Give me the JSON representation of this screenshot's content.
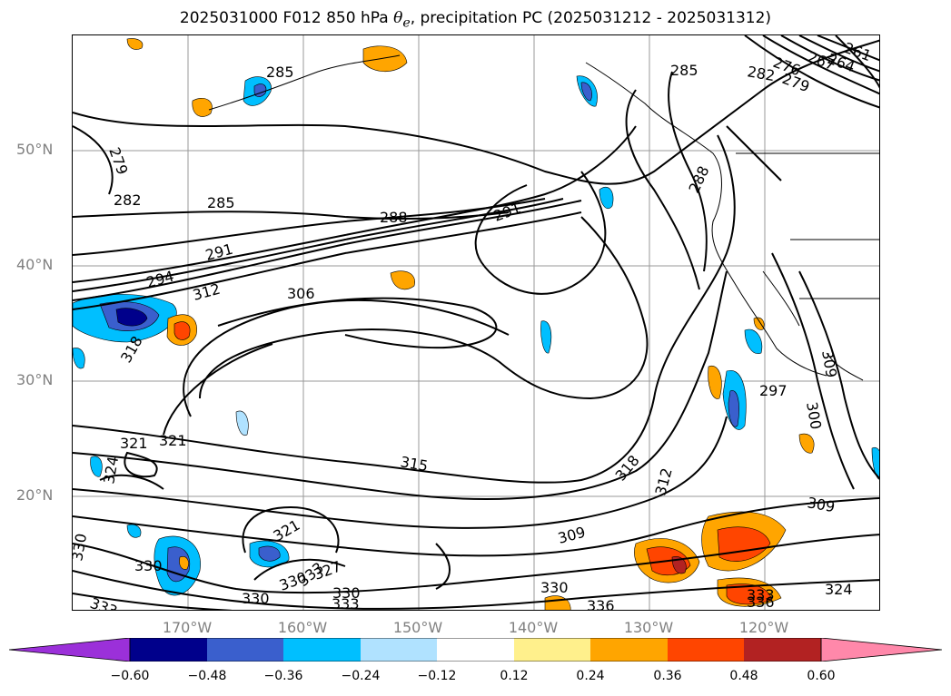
{
  "title": {
    "prefix": "2025031000 F012 850 hPa ",
    "symbol": "θ",
    "subscript": "e",
    "suffix": ", precipitation PC (2025031212 - 2025031312)"
  },
  "lat_labels": [
    "50°N",
    "40°N",
    "30°N",
    "20°N"
  ],
  "lon_labels": [
    "170°W",
    "160°W",
    "150°W",
    "140°W",
    "130°W",
    "120°W"
  ],
  "contour_labels": [
    "285",
    "285",
    "279",
    "282",
    "285",
    "288",
    "291",
    "291",
    "294",
    "312",
    "306",
    "318",
    "315",
    "321",
    "321",
    "324",
    "330",
    "330",
    "321",
    "327",
    "330",
    "333",
    "333",
    "330",
    "330",
    "309",
    "318",
    "312",
    "309",
    "324",
    "333",
    "336",
    "297",
    "300",
    "309",
    "330",
    "333",
    "336",
    "282",
    "279",
    "267",
    "264",
    "261",
    "288",
    "276"
  ],
  "colorbar": {
    "ticks": [
      "−0.60",
      "−0.48",
      "−0.36",
      "−0.24",
      "−0.12",
      "0.12",
      "0.24",
      "0.36",
      "0.48",
      "0.60"
    ],
    "colors": [
      "#9b30d9",
      "#00008b",
      "#3a5fcd",
      "#00bfff",
      "#b0e2ff",
      "#ffffff",
      "#fff08c",
      "#ffa500",
      "#ff4500",
      "#b22222",
      "#ff88aa",
      "#ff88aa"
    ]
  }
}
